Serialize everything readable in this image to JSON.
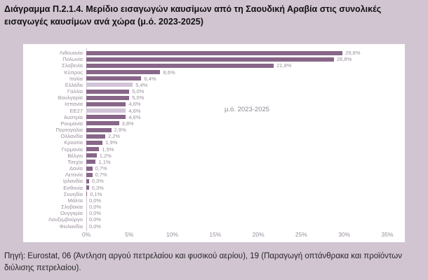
{
  "title": "Διάγραμμα Π.2.1.4. Μερίδιο εισαγωγών καυσίμων από τη Σαουδική Αραβία στις συνολικές εισαγωγές καυσίμων ανά χώρα (μ.ό. 2023-2025)",
  "source": "Πηγή: Eurostat, 06 (Άντληση αργού πετρελαίου και φυσικού αερίου), 19 (Παραγωγή οπτάνθρακα και προϊόντων διύλισης πετρελαίου).",
  "annotation": "μ.ό. 2023-2025",
  "colors": {
    "page_bg": "#d2c5d2",
    "panel_bg": "#ffffff",
    "bar": "#886689",
    "bar_highlight": "#d1c4d8",
    "label_text": "#988e9b",
    "annotation_text": "#8b858e",
    "axis_line": "#ccc5cf",
    "title_text": "#111111",
    "source_text": "#262626"
  },
  "chart_data": {
    "type": "bar",
    "orientation": "horizontal",
    "title": "Διάγραμμα Π.2.1.4. Μερίδιο εισαγωγών καυσίμων από τη Σαουδική Αραβία στις συνολικές εισαγωγές καυσίμων ανά χώρα (μ.ό. 2023-2025)",
    "annotation": "μ.ό. 2023-2025",
    "categories": [
      "Λιθουανία",
      "Πολωνία",
      "Σλοβενία",
      "Κύπρος",
      "Ιταλία",
      "Ελλάδα",
      "Γαλλία",
      "Βουλγαρία",
      "Ισπανία",
      "ΕΕ27",
      "Αυστρία",
      "Ρουμανία",
      "Πορτογαλία",
      "Ολλανδία",
      "Κροατία",
      "Γερμανία",
      "Βέλγιο",
      "Τσεχία",
      "Δανία",
      "Λετονία",
      "Ιρλανδία",
      "Εσθονία",
      "Σουηδία",
      "Μάλτα",
      "Σλοβακία",
      "Ουγγαρία",
      "Λουξεμβούργο",
      "Φινλανδία"
    ],
    "values": [
      29.8,
      28.8,
      21.8,
      8.6,
      6.4,
      5.4,
      5.0,
      5.0,
      4.6,
      4.6,
      4.6,
      3.8,
      2.9,
      2.2,
      1.9,
      1.5,
      1.2,
      1.1,
      0.7,
      0.7,
      0.3,
      0.3,
      0.1,
      0.0,
      0.0,
      0.0,
      0.0,
      0.0
    ],
    "value_labels": [
      "29,8%",
      "28,8%",
      "21,8%",
      "8,6%",
      "6,4%",
      "5,4%",
      "5,0%",
      "5,0%",
      "4,6%",
      "4,6%",
      "4,6%",
      "3,8%",
      "2,9%",
      "2,2%",
      "1,9%",
      "1,5%",
      "1,2%",
      "1,1%",
      "0,7%",
      "0,7%",
      "0,3%",
      "0,3%",
      "0,1%",
      "0,0%",
      "0,0%",
      "0,0%",
      "0,0%",
      "0,0%"
    ],
    "highlighted_categories": [
      "Ελλάδα",
      "ΕΕ27"
    ],
    "x_ticks": [
      "0%",
      "5%",
      "10%",
      "15%",
      "20%",
      "25%",
      "30%",
      "35%"
    ],
    "xlim": [
      0,
      35
    ],
    "grid": false,
    "legend": false
  }
}
